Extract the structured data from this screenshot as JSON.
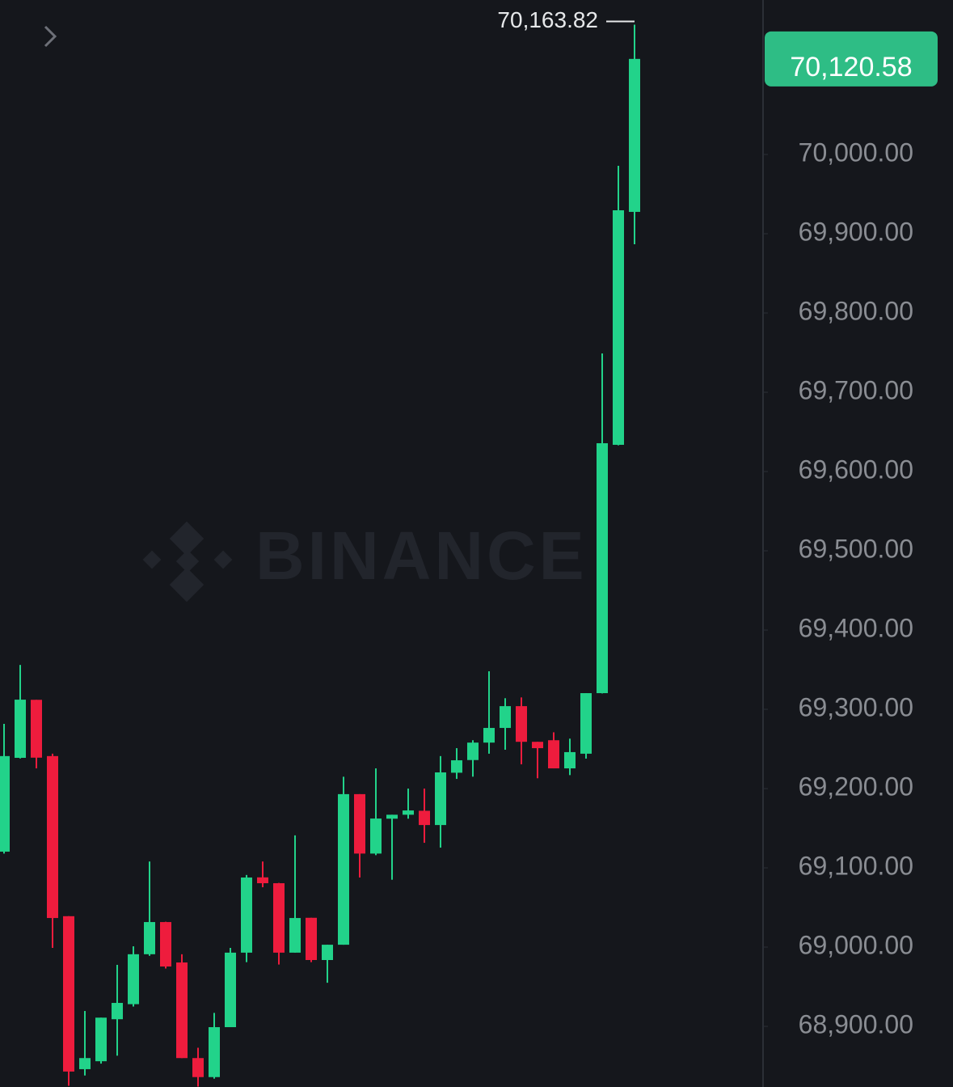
{
  "chart_data": {
    "type": "candlestick",
    "watermark": "BINANCE",
    "up_color": "#22d38a",
    "down_color": "#ee1c3d",
    "ylim": [
      68823.5,
      70194.9
    ],
    "yticks": [
      {
        "value": 68900,
        "label": "68,900.00"
      },
      {
        "value": 69000,
        "label": "69,000.00"
      },
      {
        "value": 69100,
        "label": "69,100.00"
      },
      {
        "value": 69200,
        "label": "69,200.00"
      },
      {
        "value": 69300,
        "label": "69,300.00"
      },
      {
        "value": 69400,
        "label": "69,400.00"
      },
      {
        "value": 69500,
        "label": "69,500.00"
      },
      {
        "value": 69600,
        "label": "69,600.00"
      },
      {
        "value": 69700,
        "label": "69,700.00"
      },
      {
        "value": 69800,
        "label": "69,800.00"
      },
      {
        "value": 69900,
        "label": "69,900.00"
      },
      {
        "value": 70000,
        "label": "70,000.00"
      }
    ],
    "open": [
      69120.4,
      69238.8,
      69312,
      69241,
      69039,
      68846,
      68856,
      68909,
      68928,
      68991,
      69031.6,
      68980.6,
      68860,
      68836,
      68899,
      68993,
      69088,
      69080.6,
      68993,
      69037,
      68983.7,
      69003,
      69193,
      69118,
      69162,
      69167,
      69172,
      69154,
      69220,
      69236,
      69258,
      69276.5,
      69304,
      69259,
      69261,
      69225.5,
      69244,
      69320.4,
      69633.7,
      69927.6
    ],
    "high": [
      69281.6,
      69356,
      69312,
      69244,
      69039,
      68919.4,
      68911,
      68977.6,
      69001,
      69108,
      69032,
      68991,
      68873,
      68917,
      68999,
      69091,
      69108,
      69081,
      69141,
      69037,
      69003,
      69215,
      69193,
      69225.5,
      69167,
      69200,
      69200,
      69241,
      69251,
      69261,
      69348,
      69314,
      69315,
      69259,
      69271,
      69263,
      69320.4,
      69749,
      69985.7,
      70163.82
    ],
    "low": [
      69118,
      69238,
      69225.5,
      68999,
      68825,
      68838,
      68853,
      68863,
      68925,
      68989,
      68973,
      68860,
      68824,
      68834,
      68899,
      68981,
      69075.5,
      68978,
      68993,
      68981,
      68955,
      69003,
      69087.8,
      69116,
      69085,
      69162,
      69131.6,
      69125.5,
      69212.2,
      69215,
      69244,
      69249,
      69230.6,
      69213,
      69225.5,
      69217,
      69237.8,
      69320,
      69633,
      69886.7
    ],
    "close": [
      69241,
      69312.2,
      69239,
      69036.7,
      68843,
      68860,
      68911,
      68929.6,
      68991,
      69031.6,
      68975.5,
      68860,
      68836,
      68899,
      68993,
      69087.8,
      69080.6,
      68993,
      69036.7,
      68983.7,
      69003,
      69193,
      69118,
      69162.2,
      69167,
      69172.4,
      69154,
      69220.4,
      69235.7,
      69258,
      69276.5,
      69304,
      69259,
      69251,
      69225.5,
      69246,
      69320.4,
      69635.7,
      69929.6,
      70120.58
    ],
    "high_label": "70,163.82",
    "last_label": "70,120.58"
  }
}
